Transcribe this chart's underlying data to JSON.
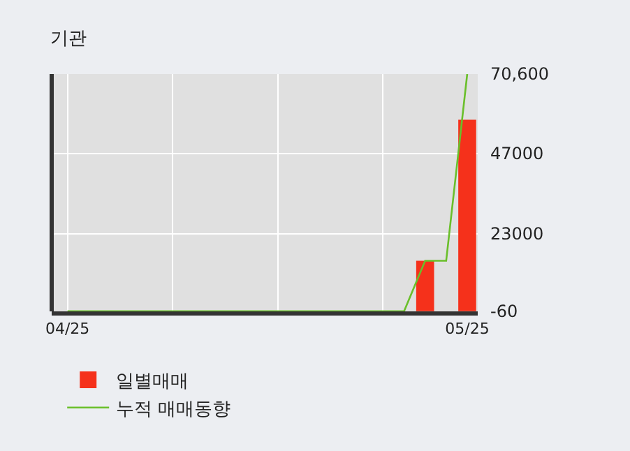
{
  "chart_data": {
    "type": "bar",
    "title": "기관",
    "categories": [
      "04/25",
      null,
      null,
      null,
      null,
      null,
      null,
      null,
      null,
      null,
      null,
      null,
      null,
      null,
      null,
      null,
      null,
      null,
      null,
      "05/25"
    ],
    "series": [
      {
        "name": "일별매매",
        "color": "#f5311b",
        "values": [
          0,
          0,
          0,
          0,
          0,
          0,
          0,
          0,
          0,
          0,
          0,
          0,
          0,
          0,
          0,
          0,
          0,
          15000,
          0,
          57000
        ]
      },
      {
        "name": "누적 매매동향",
        "type": "line",
        "color": "#6abf2a",
        "values": [
          0,
          0,
          0,
          0,
          0,
          0,
          0,
          0,
          0,
          0,
          0,
          0,
          0,
          0,
          0,
          0,
          0,
          15000,
          15000,
          70600
        ]
      }
    ],
    "ylim": [
      -60,
      70600
    ],
    "yticks": [
      {
        "value": 70600,
        "label": "70,600"
      },
      47000,
      23000,
      -60
    ],
    "grid": true,
    "legend": "bottom",
    "marker": "none",
    "line_style": "solid"
  }
}
